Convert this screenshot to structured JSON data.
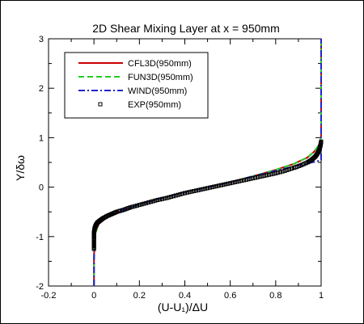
{
  "chart_data": {
    "type": "line",
    "title": "2D Shear Mixing Layer at x = 950mm",
    "xlabel": "(U-U₁)/ΔU",
    "ylabel": "Y/δω",
    "xlim": [
      -0.2,
      1.0
    ],
    "ylim": [
      -2,
      3
    ],
    "xticks": [
      "-0.2",
      "0",
      "0.2",
      "0.4",
      "0.6",
      "0.8",
      "1"
    ],
    "yticks": [
      "-2",
      "-1",
      "0",
      "1",
      "2",
      "3"
    ],
    "grid": false,
    "legend_position": "top-left",
    "series": [
      {
        "name": "CFL3D(950mm)",
        "color": "#cc0000",
        "style": "solid",
        "x": [
          0.0,
          0.0,
          0.005,
          0.02,
          0.06,
          0.12,
          0.2,
          0.3,
          0.4,
          0.5,
          0.6,
          0.7,
          0.8,
          0.88,
          0.94,
          0.97,
          0.99,
          0.997,
          1.0,
          1.0
        ],
        "y": [
          -2.0,
          -1.4,
          -0.95,
          -0.75,
          -0.6,
          -0.48,
          -0.35,
          -0.22,
          -0.1,
          0.0,
          0.1,
          0.22,
          0.35,
          0.47,
          0.6,
          0.72,
          0.85,
          0.95,
          1.05,
          3.0
        ]
      },
      {
        "name": "FUN3D(950mm)",
        "color": "#22cc22",
        "style": "dashed",
        "x": [
          0.0,
          0.0,
          0.005,
          0.02,
          0.06,
          0.12,
          0.2,
          0.3,
          0.4,
          0.5,
          0.6,
          0.7,
          0.8,
          0.88,
          0.94,
          0.97,
          0.99,
          0.997,
          1.0,
          1.0
        ],
        "y": [
          -2.0,
          -1.4,
          -0.95,
          -0.74,
          -0.6,
          -0.48,
          -0.35,
          -0.22,
          -0.1,
          0.0,
          0.1,
          0.22,
          0.35,
          0.47,
          0.6,
          0.72,
          0.85,
          0.95,
          1.05,
          3.0
        ]
      },
      {
        "name": "WIND(950mm)",
        "color": "#2222cc",
        "style": "dashdot",
        "x": [
          0.0,
          0.0,
          0.003,
          0.015,
          0.05,
          0.12,
          0.2,
          0.3,
          0.4,
          0.5,
          0.6,
          0.7,
          0.8,
          0.88,
          0.94,
          0.98,
          1.0,
          1.0
        ],
        "y": [
          -2.0,
          -1.5,
          -0.9,
          -0.7,
          -0.58,
          -0.47,
          -0.35,
          -0.22,
          -0.1,
          0.0,
          0.1,
          0.22,
          0.33,
          0.42,
          0.48,
          0.52,
          0.55,
          3.0
        ]
      },
      {
        "name": "EXP(950mm)",
        "color": "#000000",
        "style": "markers",
        "x": [
          0.0,
          0.0,
          0.0,
          0.0,
          0.0,
          0.002,
          0.004,
          0.008,
          0.015,
          0.025,
          0.04,
          0.06,
          0.08,
          0.1,
          0.13,
          0.16,
          0.2,
          0.24,
          0.28,
          0.32,
          0.36,
          0.4,
          0.44,
          0.48,
          0.52,
          0.56,
          0.6,
          0.64,
          0.68,
          0.72,
          0.76,
          0.8,
          0.84,
          0.88,
          0.91,
          0.94,
          0.96,
          0.975,
          0.985,
          0.992,
          0.997,
          1.0
        ],
        "y": [
          -1.25,
          -1.15,
          -1.05,
          -0.98,
          -0.92,
          -0.86,
          -0.82,
          -0.77,
          -0.72,
          -0.68,
          -0.63,
          -0.58,
          -0.54,
          -0.5,
          -0.46,
          -0.41,
          -0.36,
          -0.31,
          -0.26,
          -0.22,
          -0.17,
          -0.12,
          -0.08,
          -0.04,
          0.0,
          0.04,
          0.08,
          0.12,
          0.16,
          0.2,
          0.24,
          0.28,
          0.33,
          0.39,
          0.44,
          0.5,
          0.56,
          0.62,
          0.69,
          0.76,
          0.84,
          0.92
        ]
      }
    ]
  }
}
